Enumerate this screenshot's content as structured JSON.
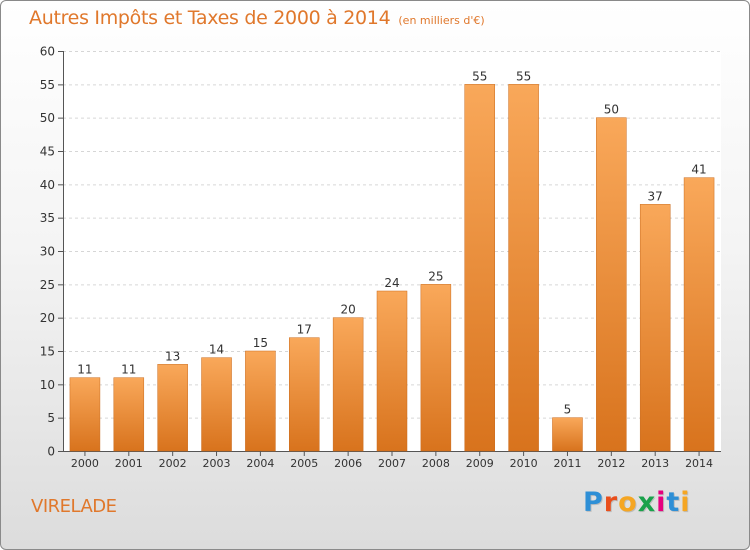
{
  "header": {
    "title": "Autres Impôts et Taxes de 2000 à 2014",
    "subtitle": "(en milliers d'€)"
  },
  "place_name": "VIRELADE",
  "brand": {
    "text": "Proxiti",
    "colors": [
      "#2e8fd6",
      "#e94e1b",
      "#f5a623",
      "#1aa24b",
      "#e6007e",
      "#2e8fd6",
      "#f5a623"
    ]
  },
  "colors": {
    "bar_light": "#f9a85a",
    "bar_dark": "#d8731d",
    "title": "#e0782c",
    "axis_text": "#333333"
  },
  "chart_data": {
    "type": "bar",
    "title": "Autres Impôts et Taxes de 2000 à 2014",
    "subtitle": "(en milliers d'€)",
    "xlabel": "",
    "ylabel": "",
    "categories": [
      "2000",
      "2001",
      "2002",
      "2003",
      "2004",
      "2005",
      "2006",
      "2007",
      "2008",
      "2009",
      "2010",
      "2011",
      "2012",
      "2013",
      "2014"
    ],
    "values": [
      11,
      11,
      13,
      14,
      15,
      17,
      20,
      24,
      25,
      55,
      55,
      5,
      50,
      37,
      41
    ],
    "data_labels": [
      "11",
      "11",
      "13",
      "14",
      "15",
      "17",
      "20",
      "24",
      "25",
      "55",
      "55",
      "5",
      "50",
      "37",
      "41"
    ],
    "ylim": [
      0,
      60
    ],
    "yticks": [
      0,
      5,
      10,
      15,
      20,
      25,
      30,
      35,
      40,
      45,
      50,
      55,
      60
    ],
    "grid": true
  }
}
